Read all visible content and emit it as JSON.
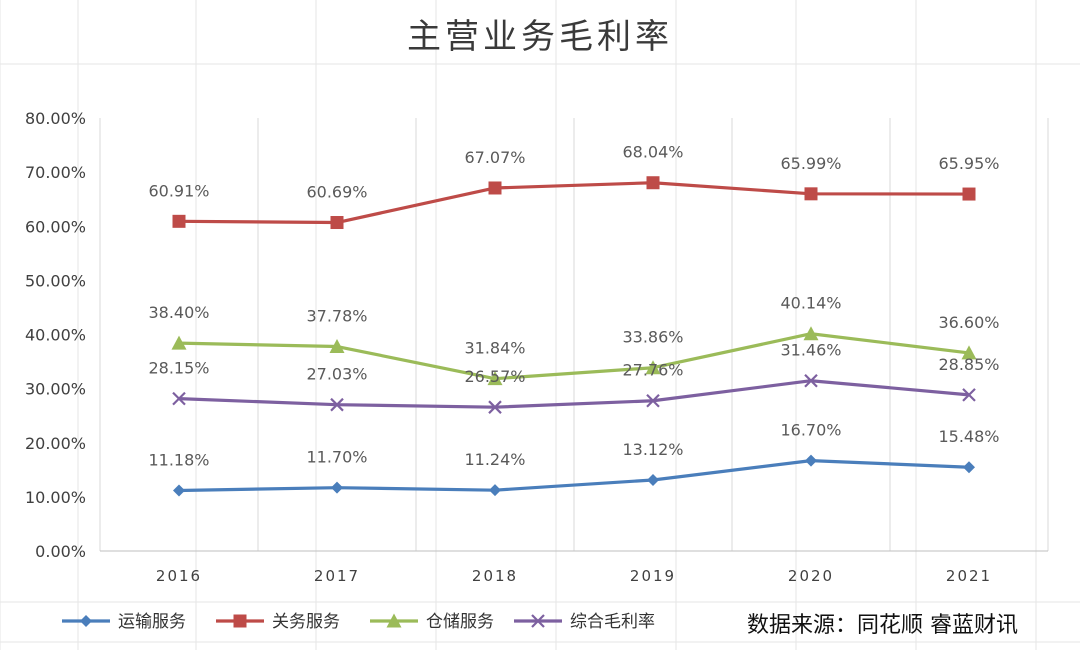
{
  "chart_data": {
    "type": "line",
    "title": "主营业务毛利率",
    "categories": [
      "2016",
      "2017",
      "2018",
      "2019",
      "2020",
      "2021"
    ],
    "ylim": [
      0,
      80
    ],
    "y_ticks": [
      0,
      10,
      20,
      30,
      40,
      50,
      60,
      70,
      80
    ],
    "y_tick_labels": [
      "0.00%",
      "10.00%",
      "20.00%",
      "30.00%",
      "40.00%",
      "50.00%",
      "60.00%",
      "70.00%",
      "80.00%"
    ],
    "grid": "vertical",
    "legend_position": "bottom-left",
    "series": [
      {
        "name": "运输服务",
        "color": "#4a7ebb",
        "marker": "diamond",
        "values": [
          11.18,
          11.7,
          11.24,
          13.12,
          16.7,
          15.48
        ],
        "labels": [
          "11.18%",
          "11.70%",
          "11.24%",
          "13.12%",
          "16.70%",
          "15.48%"
        ]
      },
      {
        "name": "关务服务",
        "color": "#be4b48",
        "marker": "square",
        "values": [
          60.91,
          60.69,
          67.07,
          68.04,
          65.99,
          65.95
        ],
        "labels": [
          "60.91%",
          "60.69%",
          "67.07%",
          "68.04%",
          "65.99%",
          "65.95%"
        ]
      },
      {
        "name": "仓储服务",
        "color": "#9bbb59",
        "marker": "triangle",
        "values": [
          38.4,
          37.78,
          31.84,
          33.86,
          40.14,
          36.6
        ],
        "labels": [
          "38.40%",
          "37.78%",
          "31.84%",
          "33.86%",
          "40.14%",
          "36.60%"
        ]
      },
      {
        "name": "综合毛利率",
        "color": "#7d60a0",
        "marker": "x",
        "values": [
          28.15,
          27.03,
          26.57,
          27.76,
          31.46,
          28.85
        ],
        "labels": [
          "28.15%",
          "27.03%",
          "26.57%",
          "27.76%",
          "31.46%",
          "28.85%"
        ]
      }
    ]
  },
  "source_note": "数据来源：同花顺 睿蓝财讯"
}
